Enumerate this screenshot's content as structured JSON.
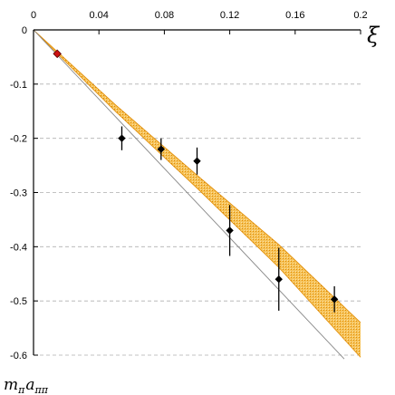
{
  "chart_data": {
    "type": "scatter",
    "xlabel": "ξ",
    "ylabel": "m",
    "ylabel_subscript": "π",
    "ylabel_a": "a",
    "ylabel_a_subscript": "ππ",
    "xlim": [
      0,
      0.2
    ],
    "ylim": [
      -0.6,
      0
    ],
    "x_ticks": [
      0,
      0.04,
      0.08,
      0.12,
      0.16,
      0.2
    ],
    "x_tick_labels": [
      "0",
      "0.04",
      "0.08",
      "0.12",
      "0.16",
      "0.2"
    ],
    "y_ticks": [
      0,
      -0.1,
      -0.2,
      -0.3,
      -0.4,
      -0.5,
      -0.6
    ],
    "y_tick_labels": [
      "0",
      "-0.1",
      "-0.2",
      "-0.3",
      "-0.4",
      "-0.5",
      "-0.6"
    ],
    "grid": "horizontal dashed",
    "points": [
      {
        "x": 0.054,
        "y": -0.2,
        "err": 0.022
      },
      {
        "x": 0.078,
        "y": -0.22,
        "err": 0.02
      },
      {
        "x": 0.1,
        "y": -0.242,
        "err": 0.025
      },
      {
        "x": 0.12,
        "y": -0.37,
        "err": 0.047
      },
      {
        "x": 0.15,
        "y": -0.46,
        "err": 0.058
      },
      {
        "x": 0.184,
        "y": -0.497,
        "err": 0.024
      }
    ],
    "physical_point": {
      "x": 0.0145,
      "y": -0.044,
      "color": "#cc1111"
    },
    "band": {
      "x": [
        0,
        0.05,
        0.1,
        0.15,
        0.2
      ],
      "upper": [
        0,
        -0.138,
        -0.268,
        -0.396,
        -0.54
      ],
      "lower": [
        0,
        -0.15,
        -0.292,
        -0.438,
        -0.604
      ],
      "fill_color": "#f0a020",
      "edge_color": "#e08a00"
    },
    "reference_line": {
      "x": [
        0,
        0.19
      ],
      "y": [
        0,
        -0.607
      ],
      "color": "#888888"
    }
  }
}
